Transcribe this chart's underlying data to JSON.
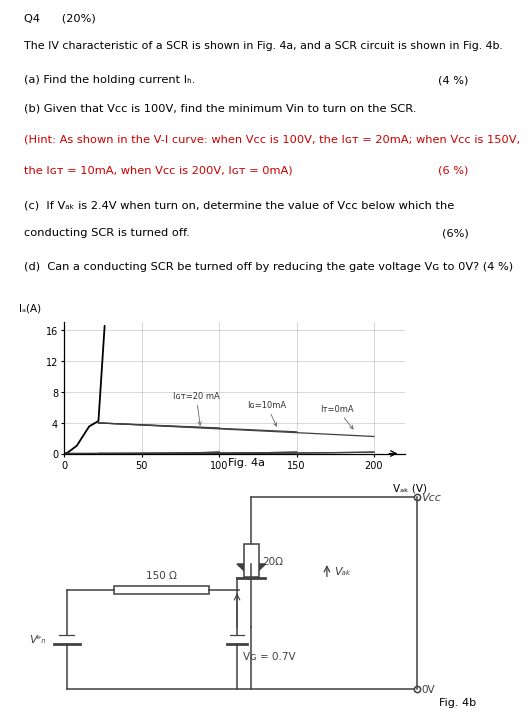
{
  "title_q": "Q4      (20%)",
  "line1": "The IV characteristic of a SCR is shown in Fig. 4a, and a SCR circuit is shown in Fig. 4b.",
  "line_a": "(a) Find the holding current Iₕ.",
  "line_a_pts": "(4 %)",
  "line_b": "(b) Given that Vcc is 100V, find the minimum Vin to turn on the SCR.",
  "line_hint": "(Hint: As shown in the V-I curve: when Vcc is 100V, the Iɢᴛ = 20mA; when Vcc is 150V,",
  "line_hint2": "the Iɢᴛ = 10mA, when Vcc is 200V, Iɢᴛ = 0mA)",
  "line_hint_pts": "(6 %)",
  "line_c": "(c)  If Vₐₖ is 2.4V when turn on, determine the value of Vᴄᴄ below which the",
  "line_c2": "conducting SCR is turned off.",
  "line_c_pts": "(6%)",
  "line_d": "(d)  Can a conducting SCR be turned off by reducing the gate voltage Vɢ to 0V? (4 %)",
  "fig4a_label": "Fig. 4a",
  "fig4b_label": "Fig. 4b",
  "graph_xlabel": "Vₐₖ (V)",
  "graph_ylabel": "Iₐ(A)",
  "graph_xlim": [
    0,
    220
  ],
  "graph_ylim": [
    0,
    17
  ],
  "graph_xticks": [
    0,
    50,
    100,
    150,
    200
  ],
  "graph_yticks": [
    0,
    4,
    8,
    12,
    16
  ],
  "bg_color": "#ffffff",
  "text_color": "#000000",
  "hint_color": "#cc0000",
  "annotation_color": "#555555",
  "gray_curve": "#404040"
}
